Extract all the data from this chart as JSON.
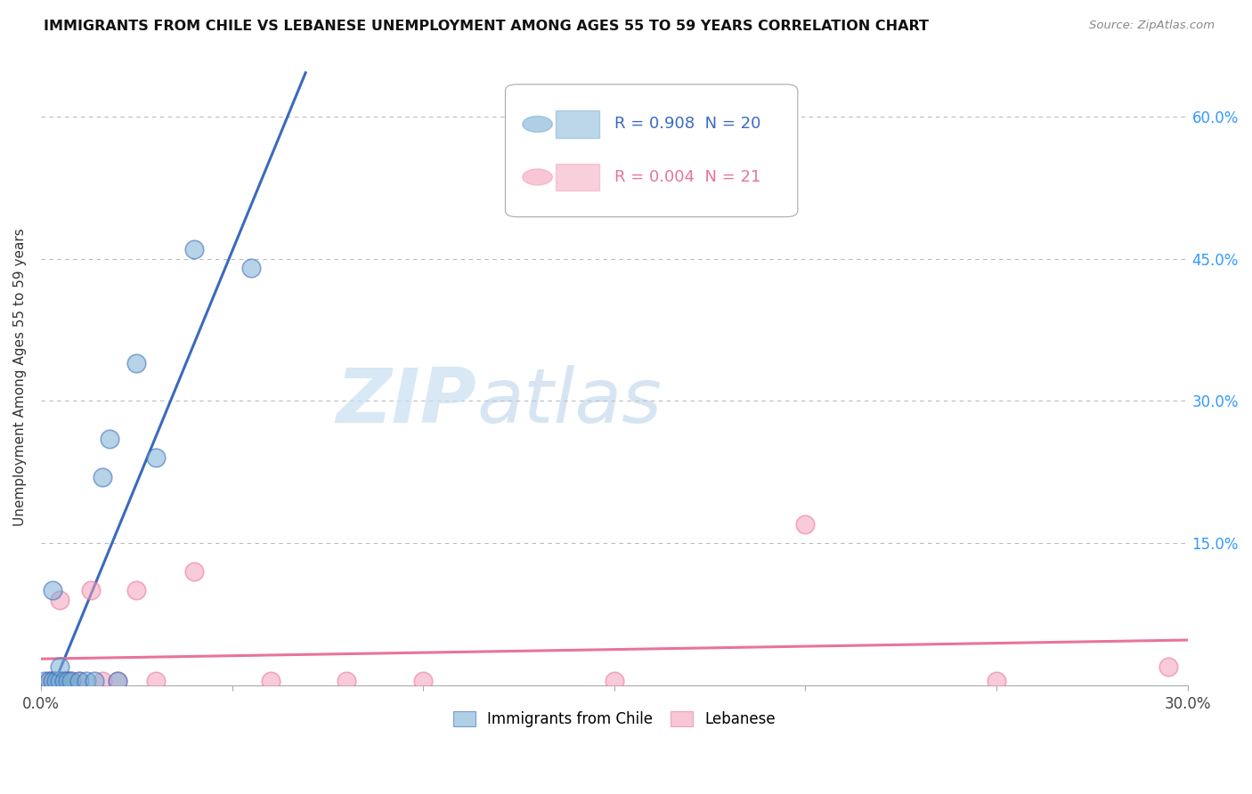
{
  "title": "IMMIGRANTS FROM CHILE VS LEBANESE UNEMPLOYMENT AMONG AGES 55 TO 59 YEARS CORRELATION CHART",
  "source": "Source: ZipAtlas.com",
  "ylabel": "Unemployment Among Ages 55 to 59 years",
  "xlim": [
    0.0,
    0.3
  ],
  "ylim": [
    0.0,
    0.65
  ],
  "xticks": [
    0.0,
    0.05,
    0.1,
    0.15,
    0.2,
    0.25,
    0.3
  ],
  "yticks": [
    0.0,
    0.15,
    0.3,
    0.45,
    0.6
  ],
  "chile_color": "#7ab0d4",
  "lebanese_color": "#f5a0bb",
  "chile_line_color": "#3a6abf",
  "lebanese_line_color": "#e87499",
  "watermark_zip": "ZIP",
  "watermark_atlas": "atlas",
  "R_chile": 0.908,
  "N_chile": 20,
  "R_lebanese": 0.004,
  "N_lebanese": 21,
  "chile_x": [
    0.001,
    0.002,
    0.003,
    0.003,
    0.004,
    0.005,
    0.005,
    0.006,
    0.007,
    0.008,
    0.01,
    0.012,
    0.014,
    0.016,
    0.018,
    0.02,
    0.025,
    0.03,
    0.04,
    0.055
  ],
  "chile_y": [
    0.005,
    0.005,
    0.005,
    0.1,
    0.005,
    0.005,
    0.02,
    0.005,
    0.005,
    0.005,
    0.005,
    0.005,
    0.005,
    0.22,
    0.26,
    0.005,
    0.34,
    0.24,
    0.46,
    0.44
  ],
  "lebanese_x": [
    0.002,
    0.003,
    0.004,
    0.005,
    0.006,
    0.007,
    0.008,
    0.01,
    0.013,
    0.016,
    0.02,
    0.025,
    0.03,
    0.04,
    0.06,
    0.08,
    0.1,
    0.15,
    0.2,
    0.25,
    0.295
  ],
  "lebanese_y": [
    0.005,
    0.005,
    0.005,
    0.09,
    0.005,
    0.005,
    0.005,
    0.005,
    0.1,
    0.005,
    0.005,
    0.1,
    0.005,
    0.12,
    0.005,
    0.005,
    0.005,
    0.005,
    0.17,
    0.005,
    0.02
  ]
}
